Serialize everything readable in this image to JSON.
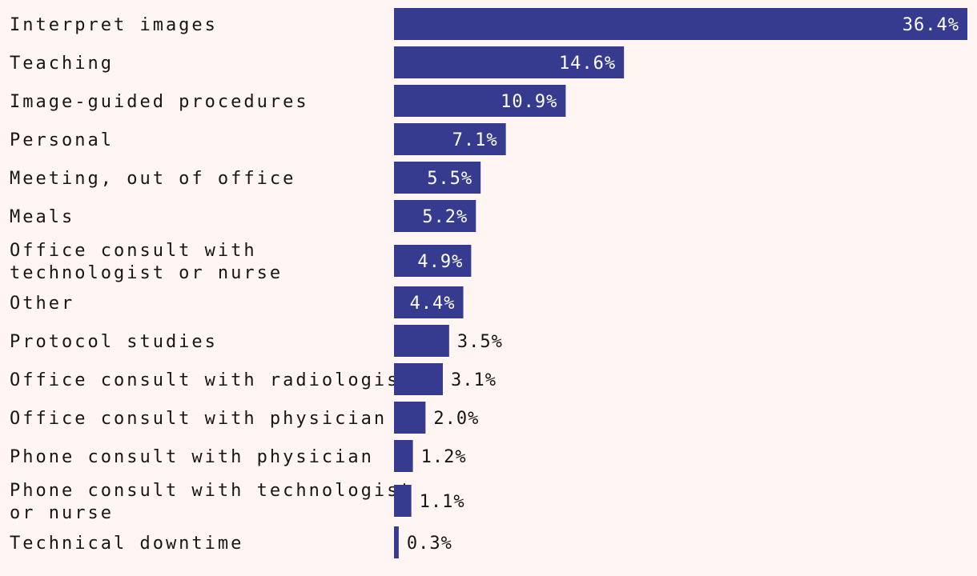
{
  "colors": {
    "background": "#fff5f2",
    "bar": "#373b8f",
    "label_text": "#161616",
    "inside_label": "#ffffff",
    "outside_label": "#161616"
  },
  "chart_data": {
    "type": "bar",
    "orientation": "horizontal",
    "categories": [
      "Interpret images",
      "Teaching",
      "Image-guided procedures",
      "Personal",
      "Meeting, out of office",
      "Meals",
      "Office consult with technologist or nurse",
      "Other",
      "Protocol studies",
      "Office consult with radiologist",
      "Office consult with physician",
      "Phone consult with physician",
      "Phone consult with technologist or nurse",
      "Technical downtime"
    ],
    "category_lines": [
      [
        "Interpret images"
      ],
      [
        "Teaching"
      ],
      [
        "Image-guided procedures"
      ],
      [
        "Personal"
      ],
      [
        "Meeting, out of office"
      ],
      [
        "Meals"
      ],
      [
        "Office consult with",
        "technologist or nurse"
      ],
      [
        "Other"
      ],
      [
        "Protocol studies"
      ],
      [
        "Office consult with radiologist"
      ],
      [
        "Office consult with physician"
      ],
      [
        "Phone consult with physician"
      ],
      [
        "Phone consult with technologist",
        "or nurse"
      ],
      [
        "Technical downtime"
      ]
    ],
    "values": [
      36.4,
      14.6,
      10.9,
      7.1,
      5.5,
      5.2,
      4.9,
      4.4,
      3.5,
      3.1,
      2.0,
      1.2,
      1.1,
      0.3
    ],
    "value_labels": [
      "36.4%",
      "14.6%",
      "10.9%",
      "7.1%",
      "5.5%",
      "5.2%",
      "4.9%",
      "4.4%",
      "3.5%",
      "3.1%",
      "2.0%",
      "1.2%",
      "1.1%",
      "0.3%"
    ],
    "unit": "%",
    "title": "",
    "xlabel": "",
    "ylabel": "",
    "xlim": [
      0,
      36.4
    ],
    "grid": false,
    "legend": "none"
  }
}
